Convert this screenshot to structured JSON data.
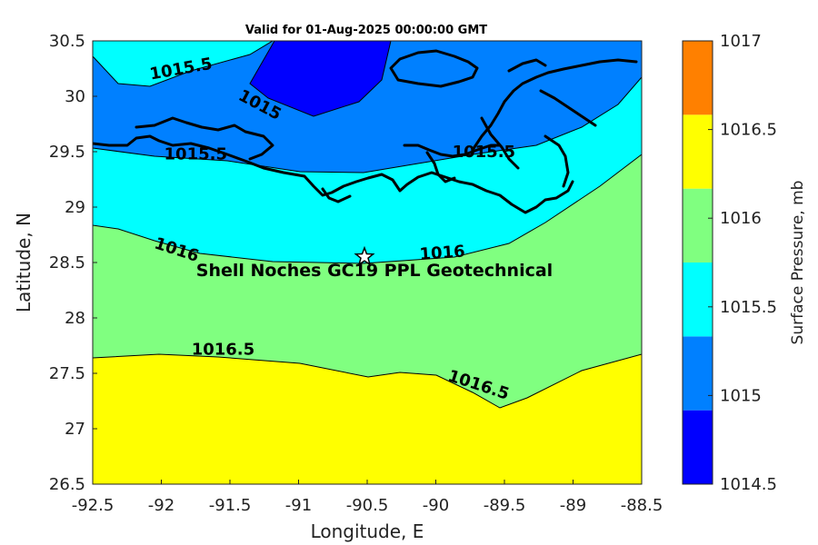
{
  "title": "Valid for 01-Aug-2025 00:00:00 GMT",
  "xlabel": "Longitude, E",
  "ylabel": "Latitude, N",
  "x_ticks": [
    "-92.5",
    "-92",
    "-91.5",
    "-91",
    "-90.5",
    "-90",
    "-89.5",
    "-89",
    "-88.5"
  ],
  "y_ticks": [
    "30.5",
    "30",
    "29.5",
    "29",
    "28.5",
    "28",
    "27.5",
    "27",
    "26.5"
  ],
  "xlim": [
    -92.5,
    -88.5
  ],
  "ylim": [
    26.5,
    30.5
  ],
  "colorbar": {
    "label": "Surface Pressure, mb",
    "ticks": [
      "1017",
      "1016.5",
      "1016",
      "1015.5",
      "1015",
      "1014.5"
    ],
    "levels": [
      1014.5,
      1014.75,
      1015,
      1015.25,
      1015.5,
      1015.75,
      1016,
      1016.25,
      1016.5,
      1016.75,
      1017
    ],
    "colors": [
      "#0000ff",
      "#0080ff",
      "#00ffff",
      "#80ff80",
      "#ffff00",
      "#ff8000"
    ]
  },
  "contour_labels": [
    {
      "text": "1015.5",
      "x": -91.85,
      "y": 30.2
    },
    {
      "text": "1015",
      "x": -91.3,
      "y": 29.88
    },
    {
      "text": "1015.5",
      "x": -91.75,
      "y": 29.43
    },
    {
      "text": "1015.5",
      "x": -89.65,
      "y": 29.45
    },
    {
      "text": "1016",
      "x": -91.9,
      "y": 28.57
    },
    {
      "text": "1016",
      "x": -89.95,
      "y": 28.54
    },
    {
      "text": "1016.5",
      "x": -91.55,
      "y": 27.67
    },
    {
      "text": "1016.5",
      "x": -89.7,
      "y": 27.35
    }
  ],
  "site": {
    "label": "Shell Noches   GC19 PPL  Geotechnical",
    "lon": -90.52,
    "lat": 28.55
  },
  "regions": {
    "bands": [
      "1014.75",
      "1015",
      "1015.5",
      "1016",
      "1016.5"
    ],
    "band_colors": [
      "#0000ff",
      "#0080ff",
      "#00ffff",
      "#80ff80",
      "#ffff00"
    ]
  },
  "chart_data": {
    "type": "heatmap",
    "title": "Valid for 01-Aug-2025 00:00:00 GMT",
    "xlabel": "Longitude, E",
    "ylabel": "Latitude, N",
    "xlim": [
      -92.5,
      -88.5
    ],
    "ylim": [
      26.5,
      30.5
    ],
    "colorbar_label": "Surface Pressure, mb",
    "colorbar_range": [
      1014.5,
      1017
    ],
    "contour_levels": [
      1015,
      1015.5,
      1016,
      1016.5
    ]
  }
}
